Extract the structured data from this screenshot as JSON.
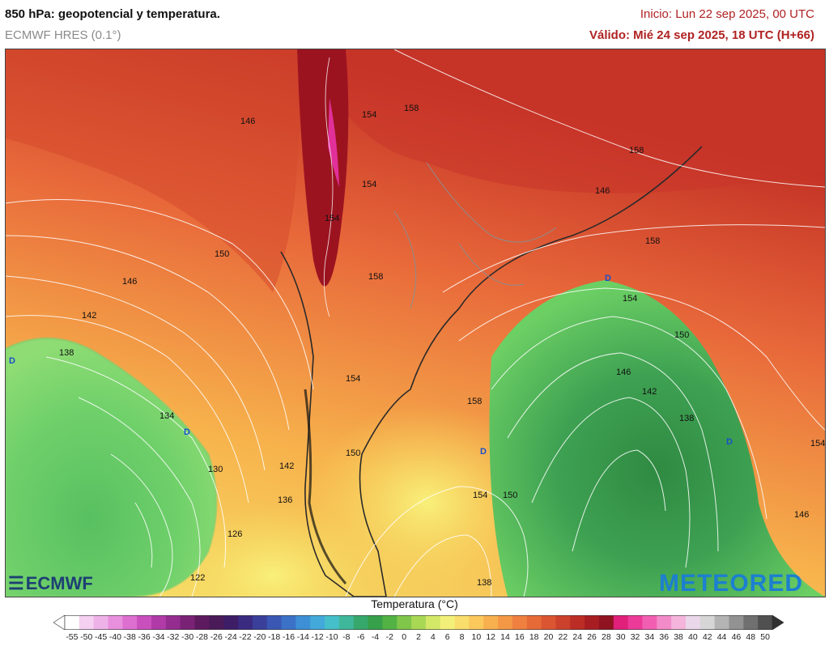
{
  "header": {
    "title": "850 hPa: geopotencial y temperatura.",
    "model": "ECMWF HRES (0.1°)",
    "init": "Inicio: Lun 22 sep 2025, 00 UTC",
    "valid": "Válido: Mié 24 sep 2025, 18 UTC (H+66)"
  },
  "logos": {
    "left": "ECMWF",
    "right": "METEORED"
  },
  "map": {
    "contour_labels": [
      "158",
      "158",
      "154",
      "154",
      "150",
      "146",
      "142",
      "138",
      "134",
      "130",
      "126",
      "122",
      "158",
      "154",
      "150",
      "146",
      "142",
      "138",
      "154",
      "154",
      "150",
      "158",
      "154",
      "150",
      "146",
      "146",
      "142",
      "138",
      "136",
      "146",
      "154",
      "158"
    ],
    "low_markers": [
      "D",
      "D",
      "D",
      "D",
      "D"
    ]
  },
  "legend": {
    "title": "Temperatura (°C)",
    "ticks": [
      "-55",
      "-50",
      "-45",
      "-40",
      "-38",
      "-36",
      "-34",
      "-32",
      "-30",
      "-28",
      "-26",
      "-24",
      "-22",
      "-20",
      "-18",
      "-16",
      "-14",
      "-12",
      "-10",
      "-8",
      "-6",
      "-4",
      "-2",
      "0",
      "2",
      "4",
      "6",
      "8",
      "10",
      "12",
      "14",
      "16",
      "18",
      "20",
      "22",
      "24",
      "26",
      "28",
      "30",
      "32",
      "34",
      "36",
      "38",
      "40",
      "42",
      "44",
      "46",
      "48",
      "50"
    ],
    "colors": [
      "#ffffff",
      "#f5d0f0",
      "#eeb2e8",
      "#e890de",
      "#dd6fd0",
      "#c94fbd",
      "#b03aa7",
      "#952c8f",
      "#7a2276",
      "#5e1a5e",
      "#4b1a58",
      "#3d1d66",
      "#3a2a80",
      "#3a3f9a",
      "#3a57b3",
      "#3b72c8",
      "#3d8fd6",
      "#43a9da",
      "#45bfc9",
      "#3fb79a",
      "#37a86b",
      "#36a04a",
      "#52b244",
      "#7fc64a",
      "#a9d855",
      "#d4e868",
      "#f3f07a",
      "#f9de6c",
      "#fbc85c",
      "#f8b04e",
      "#f59846",
      "#ef8040",
      "#e66a38",
      "#db5532",
      "#cc412b",
      "#bb2d25",
      "#a81d22",
      "#8f1320",
      "#e0207a",
      "#ec3a98",
      "#f25fb2",
      "#f48bc9",
      "#f4b4dc",
      "#ead7ea",
      "#d6d6d6",
      "#b4b4b4",
      "#929292",
      "#707070",
      "#505050"
    ]
  }
}
